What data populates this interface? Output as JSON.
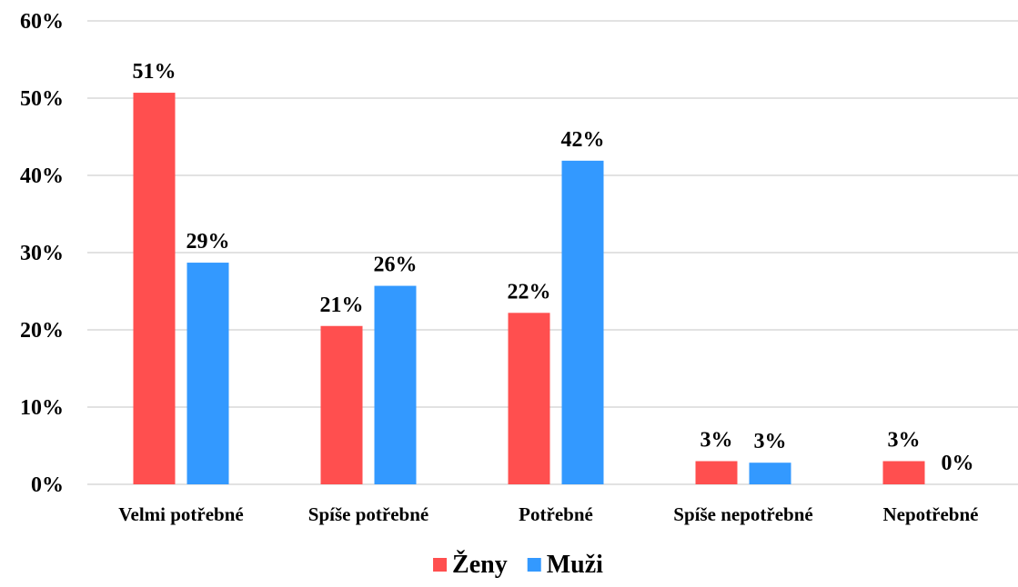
{
  "chart_data": {
    "type": "bar",
    "categories": [
      "Velmi potřebné",
      "Spíše potřebné",
      "Potřebné",
      "Spíše nepotřebné",
      "Nepotřebné"
    ],
    "series": [
      {
        "name": "Ženy",
        "color": "#FF4F4F",
        "values": [
          50.7,
          20.5,
          22.2,
          3.0,
          3.0
        ],
        "labels": [
          "51%",
          "21%",
          "22%",
          "3%",
          "3%"
        ]
      },
      {
        "name": "Muži",
        "color": "#3399FF",
        "values": [
          28.7,
          25.7,
          41.9,
          2.8,
          0.0
        ],
        "labels": [
          "29%",
          "26%",
          "42%",
          "3%",
          "0%"
        ]
      }
    ],
    "title": "",
    "xlabel": "",
    "ylabel": "",
    "ylim": [
      0,
      60
    ],
    "yticks": [
      0,
      10,
      20,
      30,
      40,
      50,
      60
    ],
    "ytick_labels": [
      "0%",
      "10%",
      "20%",
      "30%",
      "40%",
      "50%",
      "60%"
    ],
    "grid": true,
    "grid_color": "#D9D9D9",
    "legend_position": "bottom"
  }
}
